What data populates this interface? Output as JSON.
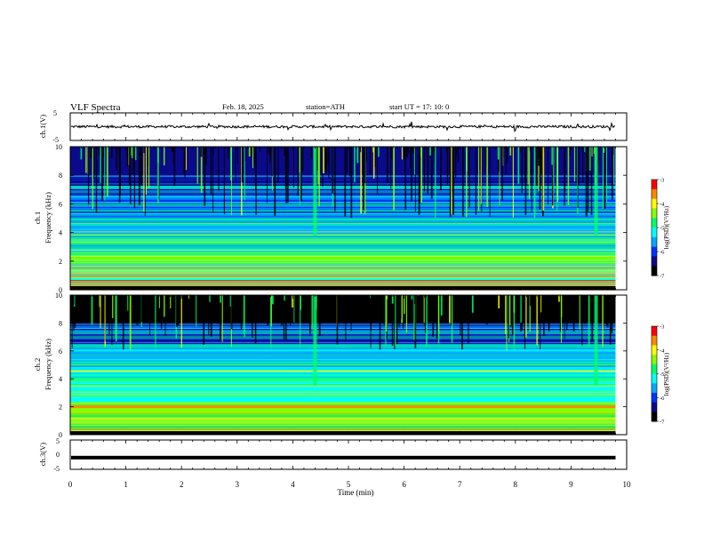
{
  "header": {
    "title": "VLF  Spectra",
    "date": "Feb. 18, 2025",
    "station": "station=ATH",
    "start": "start  UT  =   17: 10: 0"
  },
  "colors": {
    "colormap": [
      "#000000",
      "#0a0a8a",
      "#0033ff",
      "#00aaff",
      "#00ffff",
      "#00ff66",
      "#88ff00",
      "#ffff00",
      "#ff8800",
      "#ff0000",
      "#ffffff"
    ]
  },
  "chart_data": [
    {
      "type": "line",
      "ylabel": "ch.1(V)",
      "ylim": [
        -5,
        5
      ],
      "yticks": [
        "5",
        "-5"
      ],
      "mean_value": 0,
      "series": [
        {
          "values_note_level": 0
        }
      ]
    },
    {
      "type": "heatmap",
      "ylabel_top": "ch.1",
      "ylabel": "Frequency (kHz)",
      "ylim": [
        0,
        10
      ],
      "yticks": [
        "10",
        "8",
        "6",
        "4",
        "2",
        "0"
      ],
      "colorbar": {
        "label": "log(PSD)(V²/Hz)",
        "range": [
          -7,
          -3
        ],
        "ticks": [
          "-3",
          "-4",
          "-5",
          "-6",
          "-7"
        ]
      }
    },
    {
      "type": "heatmap",
      "ylabel_top": "ch.2",
      "ylabel": "Frequency (kHz)",
      "ylim": [
        0,
        10
      ],
      "yticks": [
        "10",
        "8",
        "6",
        "4",
        "2",
        "0"
      ],
      "colorbar": {
        "label": "log(PSD)(V²/Hz)",
        "range": [
          -7,
          -3
        ],
        "ticks": [
          "-3",
          "-4",
          "-5",
          "-6",
          "-7"
        ]
      }
    },
    {
      "type": "line",
      "ylabel": "ch.3(V)",
      "ylim": [
        -5,
        5
      ],
      "yticks": [
        "5",
        "0",
        "-5"
      ],
      "mean_value": -2
    }
  ],
  "xaxis": {
    "label": "Time  (min)",
    "xlim": [
      0,
      10
    ],
    "ticks": [
      "0",
      "1",
      "2",
      "3",
      "4",
      "5",
      "6",
      "7",
      "8",
      "9",
      "10"
    ]
  }
}
